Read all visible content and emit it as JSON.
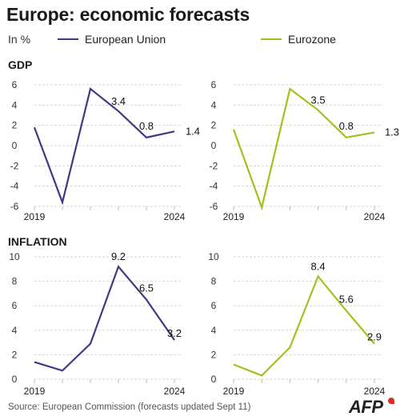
{
  "title": "Europe: economic forecasts",
  "units": "In %",
  "legend": [
    {
      "label": "European Union",
      "color": "#3e3a84"
    },
    {
      "label": "Eurozone",
      "color": "#a9be1e"
    }
  ],
  "sections": {
    "gdp": "GDP",
    "inflation": "INFLATION"
  },
  "source": "Source: European Commission (forecasts updated Sept 11)",
  "logo": "AFP",
  "chart_data": [
    {
      "type": "line",
      "panel": "gdp-eu",
      "x": [
        2019,
        2020,
        2021,
        2022,
        2023,
        2024
      ],
      "series": [
        {
          "name": "European Union",
          "color": "#3e3a84",
          "values": [
            1.8,
            -5.6,
            5.6,
            3.4,
            0.8,
            1.4
          ]
        }
      ],
      "labels": [
        {
          "index": 3,
          "text": "3.4"
        },
        {
          "index": 4,
          "text": "0.8"
        },
        {
          "index": 5,
          "text": "1.4"
        }
      ],
      "ylim": [
        -6,
        6
      ],
      "yticks": [
        "6",
        "4",
        "2",
        "0",
        "-2",
        "-4",
        "-6"
      ],
      "xtick_labels": [
        "2019",
        "2024"
      ]
    },
    {
      "type": "line",
      "panel": "gdp-ez",
      "x": [
        2019,
        2020,
        2021,
        2022,
        2023,
        2024
      ],
      "series": [
        {
          "name": "Eurozone",
          "color": "#a9be1e",
          "values": [
            1.6,
            -6.1,
            5.6,
            3.5,
            0.8,
            1.3
          ]
        }
      ],
      "labels": [
        {
          "index": 3,
          "text": "3.5"
        },
        {
          "index": 4,
          "text": "0.8"
        },
        {
          "index": 5,
          "text": "1.3"
        }
      ],
      "ylim": [
        -6,
        6
      ],
      "yticks": [
        "6",
        "4",
        "2",
        "0",
        "-2",
        "-4",
        "-6"
      ],
      "xtick_labels": [
        "2019",
        "2024"
      ]
    },
    {
      "type": "line",
      "panel": "inf-eu",
      "x": [
        2019,
        2020,
        2021,
        2022,
        2023,
        2024
      ],
      "series": [
        {
          "name": "European Union",
          "color": "#3e3a84",
          "values": [
            1.4,
            0.7,
            2.9,
            9.2,
            6.5,
            3.2
          ]
        }
      ],
      "labels": [
        {
          "index": 3,
          "text": "9.2"
        },
        {
          "index": 4,
          "text": "6.5"
        },
        {
          "index": 5,
          "text": "3.2"
        }
      ],
      "ylim": [
        0,
        10
      ],
      "yticks": [
        "10",
        "8",
        "6",
        "4",
        "2",
        "0"
      ],
      "xtick_labels": [
        "2019",
        "2024"
      ]
    },
    {
      "type": "line",
      "panel": "inf-ez",
      "x": [
        2019,
        2020,
        2021,
        2022,
        2023,
        2024
      ],
      "series": [
        {
          "name": "Eurozone",
          "color": "#a9be1e",
          "values": [
            1.2,
            0.3,
            2.6,
            8.4,
            5.6,
            2.9
          ]
        }
      ],
      "labels": [
        {
          "index": 3,
          "text": "8.4"
        },
        {
          "index": 4,
          "text": "5.6"
        },
        {
          "index": 5,
          "text": "2.9"
        }
      ],
      "ylim": [
        0,
        10
      ],
      "yticks": [
        "10",
        "8",
        "6",
        "4",
        "2",
        "0"
      ],
      "xtick_labels": [
        "2019",
        "2024"
      ]
    }
  ]
}
